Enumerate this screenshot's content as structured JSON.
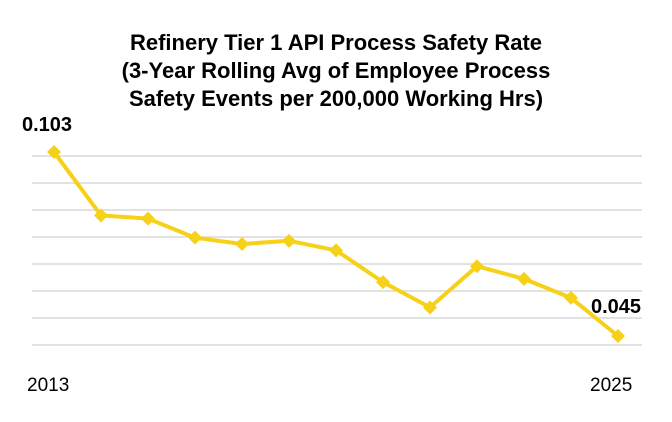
{
  "chart_data": {
    "type": "line",
    "title_lines": [
      "Refinery Tier 1 API Process Safety Rate",
      "(3-Year Rolling Avg of Employee Process",
      "Safety Events per 200,000 Working Hrs)"
    ],
    "x": [
      2013,
      2014,
      2015,
      2016,
      2017,
      2018,
      2019,
      2020,
      2021,
      2022,
      2023,
      2024,
      2025
    ],
    "x_tick_labels": [
      "2013",
      "2025"
    ],
    "series": [
      {
        "name": "Tier 1 API Process Safety Rate",
        "values": [
          0.103,
          0.083,
          0.082,
          0.076,
          0.074,
          0.075,
          0.072,
          0.062,
          0.054,
          0.067,
          0.063,
          0.057,
          0.045
        ],
        "color": "#f7d117"
      }
    ],
    "data_labels": [
      {
        "index": 0,
        "text": "0.103"
      },
      {
        "index": 12,
        "text": "0.045"
      }
    ],
    "ylim": [
      0.042,
      0.106
    ],
    "grid": true,
    "legend": "none",
    "xlabel": "",
    "ylabel": ""
  }
}
